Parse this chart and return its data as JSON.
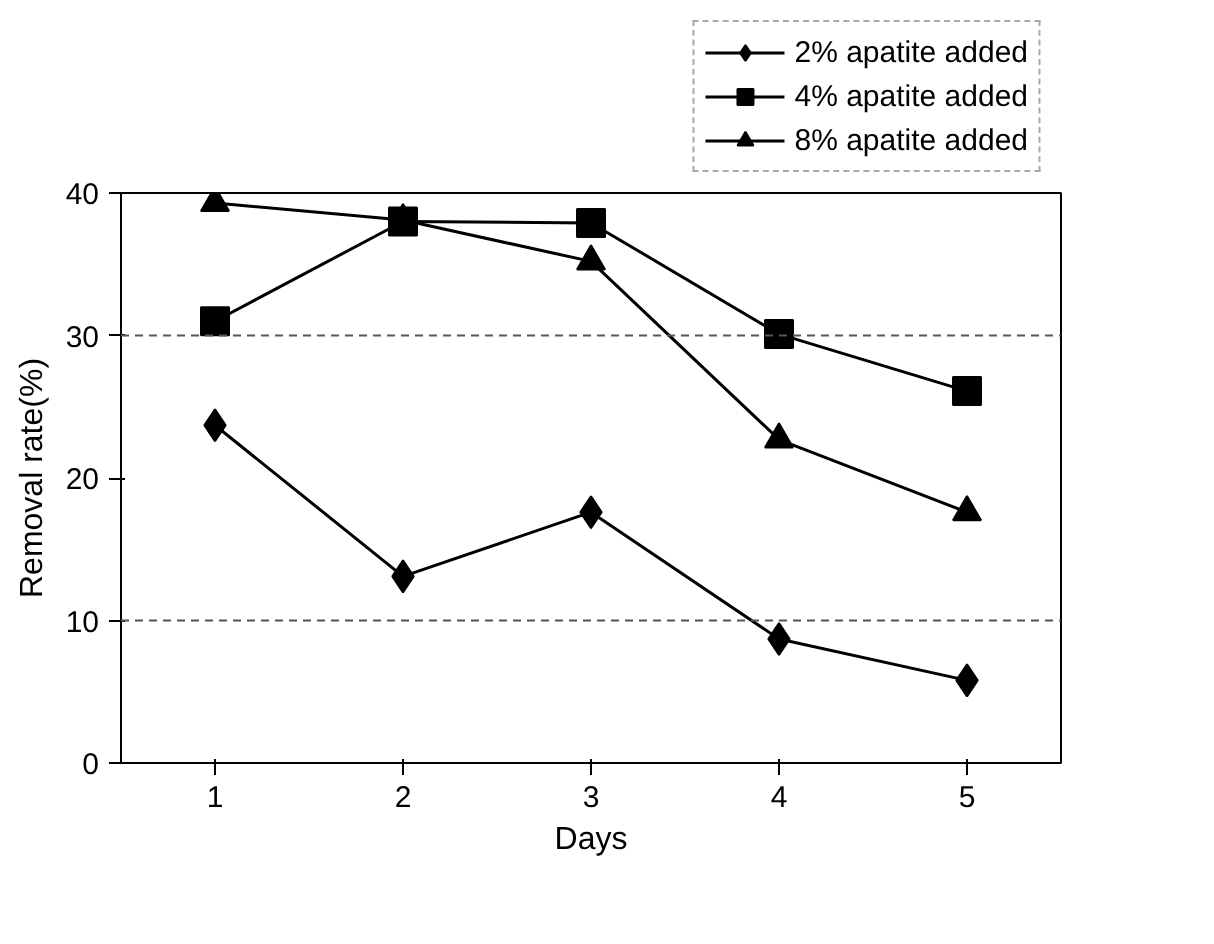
{
  "chart_data": {
    "type": "line",
    "xlabel": "Days",
    "ylabel": "Removal rate(%)",
    "categories": [
      "1",
      "2",
      "3",
      "4",
      "5"
    ],
    "ylim": [
      0,
      40
    ],
    "yticks": [
      0,
      10,
      20,
      30,
      40
    ],
    "grid": false,
    "legend": "top right",
    "ref_lines": [
      {
        "axis": "y",
        "value": 10,
        "line_style": "dashed",
        "color": "#555555"
      },
      {
        "axis": "y",
        "value": 30,
        "line_style": "dashed",
        "color": "#555555"
      }
    ],
    "series": [
      {
        "name": "2% apatite added",
        "color": "#000000",
        "marker": "diamond",
        "values": [
          23.7,
          13.1,
          17.6,
          8.7,
          5.8
        ]
      },
      {
        "name": "4% apatite added",
        "color": "#000000",
        "marker": "square",
        "values": [
          31.0,
          38.0,
          37.9,
          30.1,
          26.1
        ]
      },
      {
        "name": "8% apatite added",
        "color": "#000000",
        "marker": "triangle",
        "values": [
          39.3,
          38.1,
          35.2,
          22.7,
          17.6
        ]
      }
    ]
  }
}
